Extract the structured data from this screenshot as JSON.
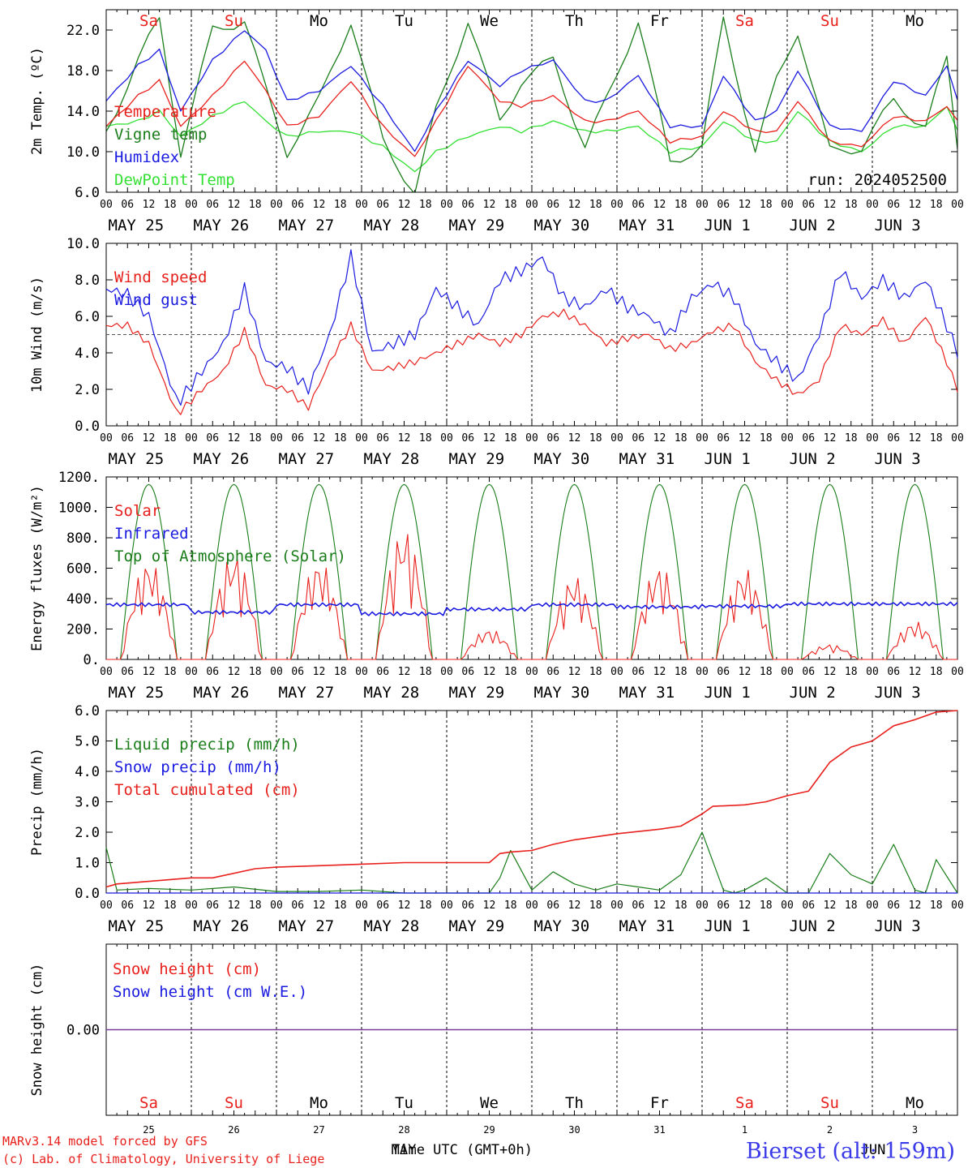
{
  "days": [
    "MAY 25",
    "MAY 26",
    "MAY 27",
    "MAY 28",
    "MAY 29",
    "MAY 30",
    "MAY 31",
    "JUN  1",
    "JUN  2",
    "JUN  3"
  ],
  "weekdays": [
    {
      "label": "Sa",
      "color": "#e8201c"
    },
    {
      "label": "Su",
      "color": "#e8201c"
    },
    {
      "label": "Mo",
      "color": "#000000"
    },
    {
      "label": "Tu",
      "color": "#000000"
    },
    {
      "label": "We",
      "color": "#000000"
    },
    {
      "label": "Th",
      "color": "#000000"
    },
    {
      "label": "Fr",
      "color": "#000000"
    },
    {
      "label": "Sa",
      "color": "#e8201c"
    },
    {
      "label": "Su",
      "color": "#e8201c"
    },
    {
      "label": "Mo",
      "color": "#000000"
    }
  ],
  "hour_ticks": [
    "00",
    "06",
    "12",
    "18"
  ],
  "hour_end_label": "00",
  "colors": {
    "red": "#e8201c",
    "dark_green": "#1a7d1a",
    "blue": "#1a1ae0",
    "light_green": "#33e033",
    "purple": "#7a3a9a"
  },
  "chart_data": [
    {
      "type": "line",
      "ylabel": "2m Temp. (ºC)",
      "ylim": [
        6,
        24
      ],
      "yticks": [
        "6.0",
        "10.0",
        "14.0",
        "18.0",
        "22.0"
      ],
      "ytick_values": [
        6,
        10,
        14,
        18,
        22
      ],
      "run_label": "run: 2024052500",
      "x_hours": [
        0,
        9,
        15,
        21,
        30,
        39,
        45,
        51,
        60,
        69,
        78,
        87,
        93,
        102,
        111,
        117,
        126,
        135,
        141,
        150,
        159,
        168,
        174,
        183,
        189,
        195,
        204,
        213,
        222,
        231,
        237,
        240
      ],
      "series": [
        {
          "name": "Temperature",
          "color": "#e8201c",
          "values": [
            12.5,
            15.5,
            17.0,
            12.5,
            15.5,
            19.0,
            16.0,
            12.5,
            13.5,
            17.0,
            12.5,
            9.5,
            13.0,
            18.5,
            15.0,
            14.5,
            15.5,
            13.0,
            13.0,
            14.0,
            11.0,
            11.5,
            14.0,
            12.0,
            12.0,
            15.0,
            11.0,
            10.5,
            13.5,
            13.0,
            14.5,
            13.0
          ]
        },
        {
          "name": "Vigne temp",
          "color": "#1a7d1a",
          "values": [
            12.0,
            19.0,
            23.0,
            10.0,
            22.0,
            23.0,
            16.0,
            10.0,
            15.0,
            23.0,
            11.0,
            6.0,
            14.0,
            23.0,
            13.0,
            17.0,
            19.0,
            10.5,
            15.0,
            23.0,
            9.0,
            10.5,
            23.0,
            10.0,
            17.0,
            22.0,
            10.0,
            10.5,
            15.0,
            12.5,
            19.0,
            10.5
          ]
        },
        {
          "name": "Humidex",
          "color": "#1a1ae0",
          "values": [
            15.0,
            18.5,
            20.0,
            14.0,
            19.0,
            22.0,
            20.0,
            15.0,
            16.0,
            18.5,
            14.5,
            10.0,
            14.0,
            19.0,
            16.5,
            18.0,
            19.0,
            15.0,
            15.0,
            17.5,
            12.5,
            12.5,
            17.5,
            13.0,
            14.0,
            18.0,
            12.5,
            12.0,
            17.0,
            15.5,
            18.5,
            15.0
          ]
        },
        {
          "name": "DewPoint Temp",
          "color": "#33e033",
          "values": [
            12.5,
            13.0,
            14.0,
            11.5,
            13.5,
            15.0,
            13.0,
            11.5,
            12.0,
            12.0,
            10.5,
            8.0,
            10.0,
            11.5,
            12.5,
            12.0,
            13.0,
            12.0,
            12.0,
            12.5,
            10.0,
            10.5,
            13.0,
            11.0,
            11.0,
            14.0,
            11.0,
            10.0,
            12.5,
            12.5,
            14.5,
            12.0
          ]
        }
      ]
    },
    {
      "type": "line",
      "ylabel": "10m Wind (m/s)",
      "ylim": [
        0,
        10
      ],
      "yticks": [
        "0.0",
        "2.0",
        "4.0",
        "6.0",
        "8.0",
        "10.0"
      ],
      "ytick_values": [
        0,
        2,
        4,
        6,
        8,
        10
      ],
      "reference_line": 5,
      "x_hours": [
        0,
        6,
        12,
        20,
        27,
        33,
        39,
        45,
        51,
        57,
        63,
        69,
        75,
        81,
        87,
        93,
        99,
        105,
        111,
        117,
        123,
        129,
        135,
        141,
        147,
        153,
        159,
        165,
        171,
        177,
        183,
        189,
        195,
        201,
        207,
        213,
        219,
        225,
        231,
        237,
        240
      ],
      "series": [
        {
          "name": "Wind speed",
          "color": "#e8201c",
          "values": [
            5.5,
            5.5,
            4.5,
            0.6,
            2.0,
            3.0,
            5.2,
            2.2,
            2.0,
            1.0,
            3.5,
            5.5,
            3.0,
            3.2,
            3.5,
            4.0,
            4.5,
            5.0,
            4.5,
            5.0,
            6.0,
            6.2,
            5.5,
            4.5,
            4.8,
            5.0,
            4.2,
            4.5,
            5.2,
            5.5,
            3.5,
            2.5,
            1.7,
            2.5,
            5.5,
            5.0,
            5.8,
            4.5,
            6.0,
            3.5,
            2.0
          ]
        },
        {
          "name": "Wind gust",
          "color": "#1a1ae0",
          "values": [
            7.5,
            7.2,
            6.0,
            1.2,
            3.0,
            4.5,
            7.5,
            3.5,
            3.2,
            2.0,
            5.0,
            9.3,
            4.0,
            4.5,
            5.0,
            7.5,
            6.5,
            5.5,
            8.0,
            8.5,
            9.2,
            7.0,
            6.5,
            7.5,
            6.5,
            6.0,
            5.0,
            7.0,
            7.8,
            7.0,
            4.5,
            3.5,
            2.5,
            5.0,
            8.5,
            7.0,
            8.0,
            7.0,
            8.0,
            5.5,
            4.0
          ]
        }
      ]
    },
    {
      "type": "line",
      "ylabel": "Energy fluxes (W/m²)",
      "ylim": [
        0,
        1200
      ],
      "yticks": [
        "0.",
        "200.",
        "400.",
        "600.",
        "800.",
        "1000.",
        "1200."
      ],
      "ytick_values": [
        0,
        200,
        400,
        600,
        800,
        1000,
        1200
      ],
      "day_peaks": {
        "solar": [
          650,
          700,
          650,
          860,
          200,
          550,
          620,
          600,
          100,
          250
        ],
        "top_of_atmosphere": 1150
      },
      "infrared_baseline": [
        360,
        310,
        360,
        300,
        330,
        360,
        345,
        350,
        365,
        365
      ],
      "series": [
        {
          "name": "Solar",
          "color": "#e8201c"
        },
        {
          "name": "Infrared",
          "color": "#1a1ae0"
        },
        {
          "name": "Top of Atmosphere (Solar)",
          "color": "#1a7d1a"
        }
      ]
    },
    {
      "type": "line",
      "ylabel": "Precip (mm/h)",
      "ylim": [
        0,
        6
      ],
      "yticks": [
        "0.0",
        "1.0",
        "2.0",
        "3.0",
        "4.0",
        "5.0",
        "6.0"
      ],
      "ytick_values": [
        0,
        1,
        2,
        3,
        4,
        5,
        6
      ],
      "series": [
        {
          "name": "Liquid precip (mm/h)",
          "color": "#1a7d1a",
          "x_hours": [
            0,
            3,
            12,
            24,
            36,
            48,
            60,
            72,
            84,
            96,
            108,
            111,
            114,
            120,
            126,
            132,
            138,
            144,
            150,
            156,
            162,
            168,
            174,
            177,
            180,
            186,
            192,
            198,
            204,
            210,
            216,
            222,
            228,
            231,
            234,
            240
          ],
          "values": [
            1.5,
            0.1,
            0.15,
            0.1,
            0.2,
            0.05,
            0.05,
            0.1,
            0.0,
            0.0,
            0.0,
            0.5,
            1.4,
            0.1,
            0.7,
            0.3,
            0.1,
            0.3,
            0.2,
            0.1,
            0.6,
            2.0,
            0.1,
            0.0,
            0.1,
            0.5,
            0.0,
            0.0,
            1.3,
            0.6,
            0.3,
            1.6,
            0.1,
            0.0,
            1.1,
            0.0
          ]
        },
        {
          "name": "Snow precip (mm/h)",
          "color": "#1a1ae0",
          "x_hours": [
            0,
            240
          ],
          "values": [
            0.0,
            0.0
          ]
        },
        {
          "name": "Total cumulated (cm)",
          "color": "#e8201c",
          "x_hours": [
            0,
            3,
            24,
            30,
            42,
            48,
            60,
            72,
            84,
            96,
            108,
            111,
            114,
            120,
            126,
            132,
            144,
            156,
            162,
            168,
            171,
            180,
            186,
            192,
            198,
            204,
            210,
            216,
            222,
            228,
            234,
            240
          ],
          "values": [
            0.2,
            0.3,
            0.5,
            0.5,
            0.8,
            0.85,
            0.9,
            0.95,
            1.0,
            1.0,
            1.0,
            1.3,
            1.35,
            1.4,
            1.6,
            1.75,
            1.95,
            2.1,
            2.2,
            2.6,
            2.85,
            2.9,
            3.0,
            3.2,
            3.35,
            4.3,
            4.8,
            5.0,
            5.5,
            5.7,
            5.95,
            6.0
          ]
        }
      ]
    },
    {
      "type": "line",
      "ylabel": "Snow height (cm)",
      "ylim": [
        -1,
        1
      ],
      "yticks": [
        "0.00"
      ],
      "ytick_values": [
        0
      ],
      "series": [
        {
          "name": "Snow height (cm)",
          "color": "#e8201c"
        },
        {
          "name": "Snow height (cm W.E.)",
          "color": "#1a1ae0"
        }
      ],
      "day_numbers": [
        "25",
        "26",
        "27",
        "28",
        "29",
        "30",
        "31",
        "1",
        "2",
        "3"
      ],
      "month_labels": [
        "MAY",
        "JUN"
      ],
      "xlabel": "Time UTC (GMT+0h)"
    }
  ],
  "footer": {
    "credit_line1": "MARv3.14 model forced by GFS",
    "credit_line2": "(c) Lab. of Climatology, University of Liege",
    "station": "Bierset (alt: 159m)"
  }
}
